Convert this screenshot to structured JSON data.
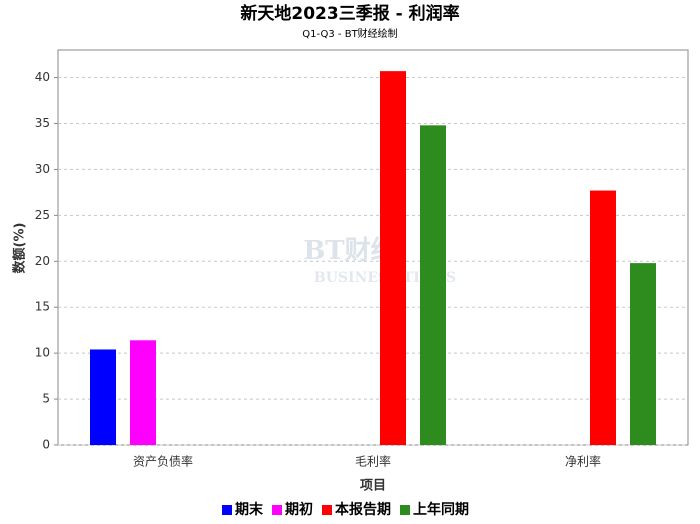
{
  "chart_data": {
    "type": "bar",
    "title": "新天地2023三季报 - 利润率",
    "subtitle": "Q1-Q3 - BT财经绘制",
    "watermark": [
      "BT财经",
      "BUSINESS TIMES"
    ],
    "x_label": "项目",
    "y_label": "数额(%)",
    "categories": [
      "资产负债率",
      "毛利率",
      "净利率"
    ],
    "series": [
      {
        "name": "期末",
        "color": "#0000ff",
        "values": [
          10.4,
          null,
          null
        ]
      },
      {
        "name": "期初",
        "color": "#ff00ff",
        "values": [
          11.4,
          null,
          null
        ]
      },
      {
        "name": "本报告期",
        "color": "#ff0000",
        "values": [
          null,
          40.7,
          27.7
        ]
      },
      {
        "name": "上年同期",
        "color": "#2e8b1e",
        "values": [
          null,
          34.8,
          19.8
        ]
      }
    ],
    "ylim": [
      0,
      43
    ],
    "yticks": [
      0,
      5,
      10,
      15,
      20,
      25,
      30,
      35,
      40
    ],
    "grid": true,
    "legend": "bottom"
  }
}
